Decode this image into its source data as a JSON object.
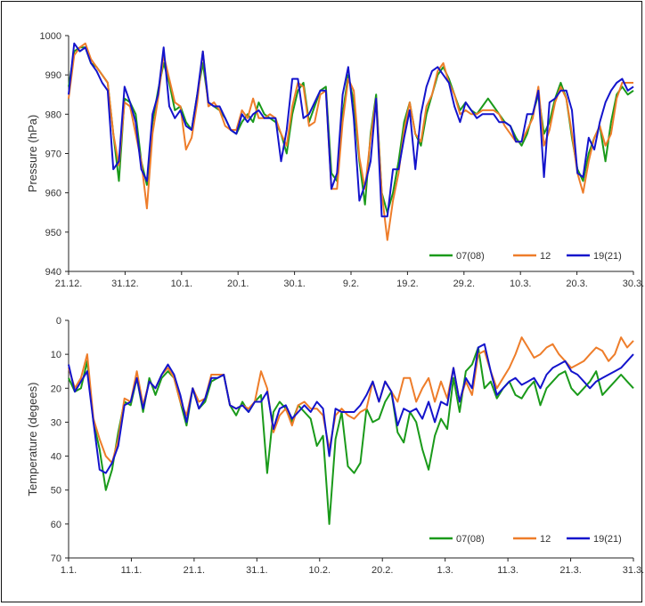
{
  "colors": {
    "07(08)": "#1a9a1a",
    "12": "#ee7d2a",
    "19(21)": "#1414cc"
  },
  "chart_data": [
    {
      "type": "line",
      "ylabel": "Pressure (hPa)",
      "ylim": [
        940,
        1000
      ],
      "yticks": [
        "940",
        "950",
        "960",
        "970",
        "980",
        "990",
        "1000"
      ],
      "xticks": [
        "21.12.",
        "31.12.",
        "10.1.",
        "20.1.",
        "30.1.",
        "9.2.",
        "19.2.",
        "29.2.",
        "10.3.",
        "20.3.",
        "30.3."
      ],
      "grid": false,
      "legend_position": "bottom-right",
      "legend": [
        "07(08)",
        "12",
        "19(21)"
      ],
      "x_index_range": [
        0,
        101
      ],
      "series": [
        {
          "name": "07(08)",
          "values": [
            987,
            996,
            997,
            997,
            993,
            992,
            990,
            988,
            975,
            963,
            984,
            983,
            980,
            968,
            962,
            978,
            986,
            993,
            988,
            981,
            982,
            978,
            976,
            985,
            993,
            983,
            982,
            981,
            979,
            976,
            975,
            978,
            980,
            978,
            983,
            980,
            979,
            978,
            975,
            970,
            980,
            986,
            988,
            978,
            982,
            986,
            987,
            965,
            963,
            980,
            990,
            983,
            968,
            957,
            975,
            985,
            960,
            955,
            960,
            968,
            978,
            983,
            975,
            972,
            980,
            985,
            990,
            992,
            989,
            985,
            981,
            983,
            981,
            980,
            982,
            984,
            982,
            980,
            978,
            977,
            974,
            972,
            975,
            980,
            985,
            975,
            978,
            984,
            988,
            984,
            974,
            966,
            963,
            970,
            974,
            977,
            968,
            978,
            985,
            987,
            985,
            986
          ]
        },
        {
          "name": "12",
          "values": [
            984,
            995,
            997,
            998,
            994,
            992,
            990,
            988,
            975,
            967,
            983,
            982,
            975,
            968,
            956,
            975,
            984,
            995,
            989,
            983,
            982,
            971,
            974,
            983,
            996,
            982,
            983,
            981,
            977,
            976,
            976,
            981,
            979,
            984,
            979,
            979,
            980,
            979,
            975,
            972,
            982,
            988,
            987,
            977,
            978,
            985,
            986,
            961,
            961,
            978,
            989,
            986,
            969,
            961,
            974,
            984,
            960,
            948,
            958,
            965,
            976,
            983,
            975,
            973,
            982,
            985,
            991,
            993,
            988,
            985,
            980,
            981,
            980,
            980,
            981,
            981,
            981,
            980,
            977,
            975,
            973,
            973,
            976,
            979,
            987,
            972,
            976,
            983,
            987,
            984,
            975,
            965,
            960,
            968,
            974,
            977,
            972,
            975,
            984,
            988,
            988,
            988
          ]
        },
        {
          "name": "19(21)",
          "values": [
            985,
            998,
            996,
            997,
            993,
            991,
            988,
            986,
            966,
            968,
            987,
            983,
            978,
            966,
            963,
            980,
            985,
            997,
            982,
            979,
            981,
            977,
            976,
            985,
            996,
            983,
            982,
            982,
            979,
            976,
            975,
            980,
            978,
            980,
            981,
            979,
            979,
            979,
            968,
            976,
            989,
            989,
            979,
            980,
            983,
            986,
            986,
            961,
            965,
            985,
            992,
            979,
            958,
            962,
            968,
            984,
            954,
            954,
            966,
            966,
            974,
            981,
            966,
            980,
            987,
            991,
            992,
            990,
            988,
            982,
            978,
            983,
            981,
            979,
            980,
            980,
            980,
            978,
            978,
            977,
            973,
            973,
            980,
            980,
            986,
            964,
            983,
            984,
            986,
            986,
            981,
            965,
            964,
            974,
            971,
            978,
            983,
            986,
            988,
            989,
            986,
            987
          ]
        }
      ]
    },
    {
      "type": "line",
      "ylabel": "Temperature (degees)",
      "ylim": [
        0,
        70
      ],
      "y_inverted": true,
      "yticks": [
        "0",
        "10",
        "20",
        "30",
        "40",
        "50",
        "60",
        "70"
      ],
      "xticks": [
        "1.1.",
        "11.1.",
        "21.1.",
        "31.1.",
        "10.2.",
        "20.2.",
        "1.3.",
        "11.3.",
        "21.3.",
        "31.3."
      ],
      "grid": false,
      "legend_position": "bottom-right",
      "legend": [
        "07(08)",
        "12",
        "19(21)"
      ],
      "x_index_range": [
        0,
        91
      ],
      "series": [
        {
          "name": "07(08)",
          "values": [
            17,
            21,
            20,
            12,
            30,
            38,
            50,
            44,
            33,
            24,
            25,
            17,
            27,
            17,
            22,
            17,
            15,
            17,
            24,
            31,
            20,
            26,
            24,
            18,
            17,
            16,
            25,
            28,
            24,
            27,
            24,
            22,
            45,
            27,
            24,
            26,
            30,
            25,
            27,
            29,
            37,
            34,
            60,
            35,
            27,
            43,
            45,
            42,
            26,
            30,
            29,
            24,
            21,
            33,
            36,
            27,
            30,
            38,
            44,
            34,
            29,
            32,
            17,
            27,
            15,
            13,
            8,
            20,
            18,
            23,
            20,
            18,
            22,
            23,
            20,
            18,
            25,
            20,
            18,
            16,
            15,
            20,
            22,
            20,
            18,
            15,
            22,
            20,
            18,
            16,
            18,
            20
          ]
        },
        {
          "name": "12",
          "values": [
            14,
            20,
            17,
            10,
            29,
            35,
            40,
            42,
            35,
            23,
            24,
            15,
            25,
            18,
            20,
            16,
            14,
            17,
            24,
            28,
            20,
            24,
            23,
            16,
            16,
            16,
            25,
            26,
            25,
            26,
            24,
            15,
            20,
            33,
            28,
            26,
            31,
            25,
            24,
            26,
            26,
            28,
            38,
            28,
            26,
            28,
            29,
            27,
            26,
            18,
            24,
            18,
            21,
            24,
            17,
            17,
            24,
            20,
            17,
            24,
            18,
            23,
            14,
            24,
            18,
            22,
            10,
            9,
            15,
            20,
            17,
            14,
            10,
            5,
            8,
            11,
            10,
            8,
            7,
            10,
            12,
            14,
            13,
            12,
            10,
            8,
            9,
            12,
            10,
            5,
            8,
            6
          ]
        },
        {
          "name": "19(21)",
          "values": [
            13,
            21,
            18,
            15,
            30,
            44,
            45,
            42,
            37,
            25,
            24,
            17,
            26,
            18,
            20,
            16,
            13,
            16,
            22,
            30,
            20,
            26,
            23,
            17,
            17,
            16,
            25,
            26,
            25,
            27,
            24,
            24,
            21,
            32,
            26,
            25,
            29,
            27,
            25,
            27,
            24,
            26,
            40,
            26,
            27,
            27,
            27,
            25,
            22,
            18,
            24,
            18,
            21,
            31,
            26,
            27,
            26,
            29,
            24,
            30,
            24,
            25,
            14,
            24,
            17,
            20,
            8,
            7,
            15,
            22,
            20,
            18,
            17,
            19,
            18,
            17,
            20,
            16,
            14,
            13,
            12,
            15,
            16,
            18,
            20,
            18,
            17,
            16,
            15,
            14,
            12,
            10
          ]
        }
      ]
    }
  ]
}
